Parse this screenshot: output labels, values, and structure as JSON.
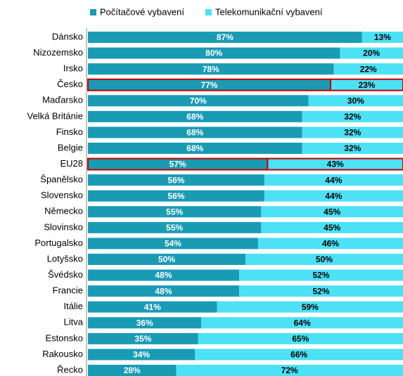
{
  "chart_data": {
    "type": "stacked-bar-100",
    "orientation": "horizontal",
    "categories": [
      "Dánsko",
      "Nizozemsko",
      "Irsko",
      "Česko",
      "Maďarsko",
      "Velká Británie",
      "Finsko",
      "Belgie",
      "EU28",
      "Španělsko",
      "Slovensko",
      "Německo",
      "Slovinsko",
      "Portugalsko",
      "Lotyšsko",
      "Švédsko",
      "Francie",
      "Itálie",
      "Litva",
      "Estonsko",
      "Rakousko",
      "Řecko"
    ],
    "series": [
      {
        "name": "Počítačové vybavení",
        "color": "#1a9bb4",
        "values": [
          87,
          80,
          78,
          77,
          70,
          68,
          68,
          68,
          57,
          56,
          56,
          55,
          55,
          54,
          50,
          48,
          48,
          41,
          36,
          35,
          34,
          28
        ],
        "value_labels": [
          "87%",
          "80%",
          "78%",
          "77%",
          "70%",
          "68%",
          "68%",
          "68%",
          "57%",
          "56%",
          "56%",
          "55%",
          "55%",
          "54%",
          "50%",
          "48%",
          "48%",
          "41%",
          "36%",
          "35%",
          "34%",
          "28%"
        ]
      },
      {
        "name": "Telekomunikační vybavení",
        "color": "#4de1f5",
        "values": [
          13,
          20,
          22,
          23,
          30,
          32,
          32,
          32,
          43,
          44,
          44,
          45,
          45,
          46,
          50,
          52,
          52,
          59,
          64,
          65,
          66,
          72
        ],
        "value_labels": [
          "13%",
          "20%",
          "22%",
          "23%",
          "30%",
          "32%",
          "32%",
          "32%",
          "43%",
          "44%",
          "44%",
          "45%",
          "45%",
          "46%",
          "50%",
          "52%",
          "52%",
          "59%",
          "64%",
          "65%",
          "66%",
          "72%"
        ]
      }
    ],
    "xlim": [
      0,
      100
    ],
    "highlighted": [
      3,
      8
    ],
    "highlight_color": "#c00000",
    "legend": "top"
  }
}
